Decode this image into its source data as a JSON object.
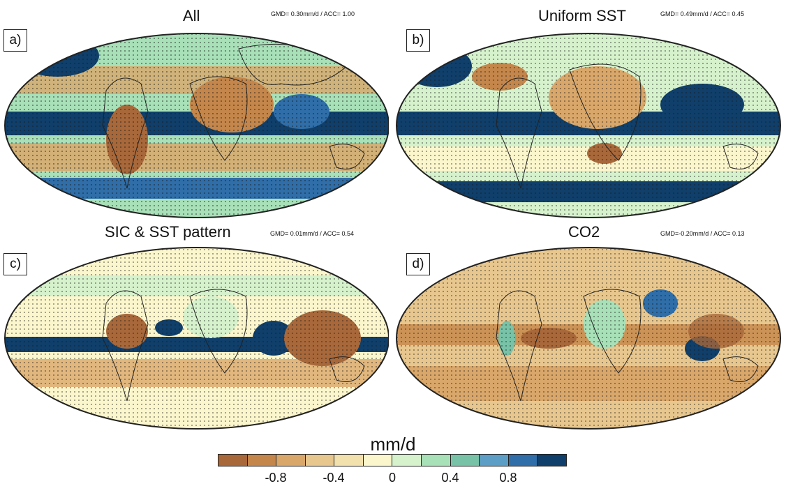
{
  "panels": [
    {
      "letter": "a)",
      "title": "All",
      "stats": "GMD= 0.30mm/d / ACC= 1.00"
    },
    {
      "letter": "b)",
      "title": "Uniform SST",
      "stats": "GMD= 0.49mm/d / ACC= 0.45"
    },
    {
      "letter": "c)",
      "title": "SIC & SST pattern",
      "stats": "GMD= 0.01mm/d / ACC= 0.54"
    },
    {
      "letter": "d)",
      "title": "CO2",
      "stats": "GMD=-0.20mm/d / ACC= 0.13"
    }
  ],
  "colorbar": {
    "title": "mm/d",
    "colors": [
      "#a8683a",
      "#c4864a",
      "#d9a76a",
      "#e8c78e",
      "#f2e0ad",
      "#fcf6cc",
      "#d6f2cc",
      "#a8e0b8",
      "#78c3a8",
      "#5d9ec6",
      "#2f6ea8",
      "#0f3f6a"
    ],
    "tick_labels": [
      "-0.8",
      "-0.4",
      "0",
      "0.4",
      "0.8"
    ]
  }
}
